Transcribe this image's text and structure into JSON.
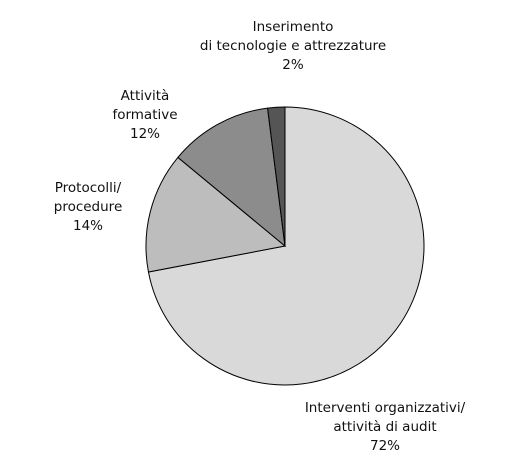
{
  "chart_data": {
    "type": "pie",
    "categories": [
      [
        "Interventi organizzativi/",
        "attività di audit"
      ],
      [
        "Protocolli/",
        "procedure"
      ],
      [
        "Attività",
        "formative"
      ],
      [
        "Inserimento",
        "di tecnologie e attrezzature"
      ]
    ],
    "values": [
      72,
      14,
      12,
      2
    ],
    "value_labels": [
      "72%",
      "14%",
      "12%",
      "2%"
    ],
    "colors": [
      "#d9d9d9",
      "#bdbdbd",
      "#8c8c8c",
      "#555555"
    ]
  }
}
